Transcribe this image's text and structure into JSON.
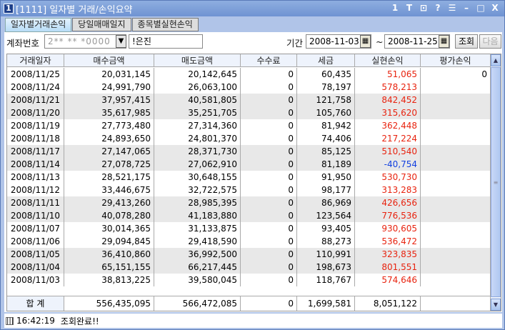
{
  "window": {
    "number": "1",
    "title": "[1111] 일자별 거래/손익요약",
    "controls": [
      "1",
      "T",
      "⊡",
      "?",
      "☰",
      "–",
      "□",
      "X"
    ]
  },
  "tabs": [
    {
      "label": "일자별거래손익",
      "active": true
    },
    {
      "label": "당일매매일지",
      "active": false
    },
    {
      "label": "종목별실현손익",
      "active": false
    }
  ],
  "toolbar": {
    "account_label": "계좌번호",
    "account_value": "2** ** *0000",
    "account_name": "!은진",
    "period_label": "기간",
    "start_date": "2008-11-03",
    "tilde": "~",
    "end_date": "2008-11-25",
    "query_button": "조회",
    "next_button": "다음"
  },
  "table": {
    "headers": [
      "거래일자",
      "매수금액",
      "매도금액",
      "수수료",
      "세금",
      "실현손익",
      "평가손익"
    ],
    "rows": [
      [
        "2008/11/25",
        "20,031,145",
        "20,142,645",
        "0",
        "60,435",
        "51,065",
        "0"
      ],
      [
        "2008/11/24",
        "24,991,790",
        "26,063,100",
        "0",
        "78,197",
        "578,213",
        ""
      ],
      [
        "2008/11/21",
        "37,957,415",
        "40,581,805",
        "0",
        "121,758",
        "842,452",
        ""
      ],
      [
        "2008/11/20",
        "35,617,985",
        "35,251,705",
        "0",
        "105,760",
        "315,620",
        ""
      ],
      [
        "2008/11/19",
        "27,773,480",
        "27,314,360",
        "0",
        "81,942",
        "362,448",
        ""
      ],
      [
        "2008/11/18",
        "24,893,650",
        "24,801,370",
        "0",
        "74,406",
        "217,224",
        ""
      ],
      [
        "2008/11/17",
        "27,147,065",
        "28,371,730",
        "0",
        "85,125",
        "510,540",
        ""
      ],
      [
        "2008/11/14",
        "27,078,725",
        "27,062,910",
        "0",
        "81,189",
        "-40,754",
        ""
      ],
      [
        "2008/11/13",
        "28,521,175",
        "30,648,155",
        "0",
        "91,950",
        "530,730",
        ""
      ],
      [
        "2008/11/12",
        "33,446,675",
        "32,722,575",
        "0",
        "98,177",
        "313,283",
        ""
      ],
      [
        "2008/11/11",
        "29,413,260",
        "28,985,395",
        "0",
        "86,969",
        "426,656",
        ""
      ],
      [
        "2008/11/10",
        "40,078,280",
        "41,183,880",
        "0",
        "123,564",
        "776,536",
        ""
      ],
      [
        "2008/11/07",
        "30,014,365",
        "31,133,875",
        "0",
        "93,405",
        "930,605",
        ""
      ],
      [
        "2008/11/06",
        "29,094,845",
        "29,418,590",
        "0",
        "88,273",
        "536,472",
        ""
      ],
      [
        "2008/11/05",
        "36,410,860",
        "36,992,500",
        "0",
        "110,991",
        "323,835",
        ""
      ],
      [
        "2008/11/04",
        "65,151,155",
        "66,217,445",
        "0",
        "198,673",
        "801,551",
        ""
      ],
      [
        "2008/11/03",
        "38,813,225",
        "39,580,045",
        "0",
        "118,767",
        "574,646",
        ""
      ]
    ],
    "total": [
      "합 계",
      "556,435,095",
      "566,472,085",
      "0",
      "1,699,581",
      "8,051,122",
      ""
    ]
  },
  "colors": {
    "profit": "#e8230f",
    "loss": "#1240e0",
    "header_bg": "#eef3fc",
    "stripe": "#e8e8e8"
  },
  "status": {
    "time": "16:42:19",
    "message": "조회완료!!"
  }
}
